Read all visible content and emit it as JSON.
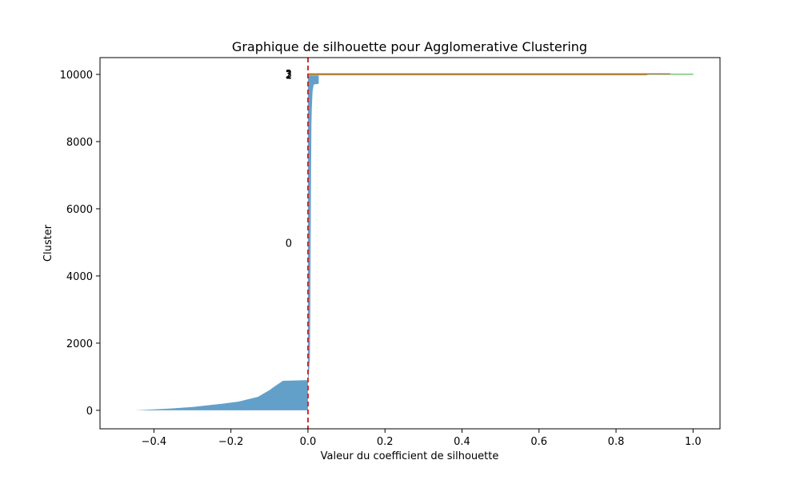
{
  "chart_data": {
    "type": "area",
    "title": "Graphique de silhouette pour Agglomerative Clustering",
    "xlabel": "Valeur du coefficient de silhouette",
    "ylabel": "Cluster",
    "xlim": [
      -0.54,
      1.07
    ],
    "ylim": [
      -550,
      10500
    ],
    "xticks": [
      -0.4,
      -0.2,
      0.0,
      0.2,
      0.4,
      0.6,
      0.8,
      1.0
    ],
    "xtick_labels": [
      "−0.4",
      "−0.2",
      "0.0",
      "0.2",
      "0.4",
      "0.6",
      "0.8",
      "1.0"
    ],
    "yticks": [
      0,
      2000,
      4000,
      6000,
      8000,
      10000
    ],
    "ytick_labels": [
      "0",
      "2000",
      "4000",
      "6000",
      "8000",
      "10000"
    ],
    "grid": false,
    "average_line": {
      "x": 0.0,
      "color": "#d62728",
      "style": "dashed"
    },
    "series": [
      {
        "cluster": "0",
        "color": "#1f77b4",
        "y_range": [
          0,
          9971
        ],
        "label_y": 4985,
        "profile": [
          [
            0,
            -0.45
          ],
          [
            50,
            -0.36
          ],
          [
            100,
            -0.3
          ],
          [
            150,
            -0.26
          ],
          [
            200,
            -0.22
          ],
          [
            260,
            -0.18
          ],
          [
            330,
            -0.155
          ],
          [
            400,
            -0.13
          ],
          [
            500,
            -0.115
          ],
          [
            600,
            -0.1
          ],
          [
            700,
            -0.088
          ],
          [
            800,
            -0.075
          ],
          [
            880,
            -0.065
          ],
          [
            900,
            0.0
          ],
          [
            950,
            0.0
          ],
          [
            1000,
            0.002
          ],
          [
            1400,
            0.004
          ],
          [
            1500,
            0.005
          ],
          [
            3000,
            0.006
          ],
          [
            5000,
            0.007
          ],
          [
            7000,
            0.008
          ],
          [
            8500,
            0.009
          ],
          [
            9000,
            0.01
          ],
          [
            9500,
            0.012
          ],
          [
            9700,
            0.015
          ],
          [
            9720,
            0.028
          ],
          [
            9971,
            0.028
          ]
        ]
      },
      {
        "cluster": "1",
        "color": "#ff7f0e",
        "y_range": [
          9981,
          9991
        ],
        "label_y": 9986,
        "profile": [
          [
            9981,
            0.88
          ],
          [
            9991,
            0.88
          ]
        ]
      },
      {
        "cluster": "2",
        "color": "#2ca02c",
        "y_range": [
          10001,
          10007
        ],
        "label_y": 10004,
        "profile": [
          [
            10001,
            1.0
          ],
          [
            10007,
            1.0
          ]
        ]
      },
      {
        "cluster": "3",
        "color": "#d62728",
        "y_range": [
          10017,
          10022
        ],
        "label_y": 10019,
        "profile": [
          [
            10017,
            0.94
          ],
          [
            10022,
            0.94
          ]
        ]
      }
    ]
  }
}
